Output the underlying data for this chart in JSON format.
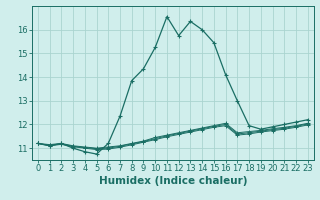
{
  "xlabel": "Humidex (Indice chaleur)",
  "background_color": "#d0eeec",
  "grid_color": "#aad4d0",
  "line_color": "#1a6e64",
  "x_values": [
    0,
    1,
    2,
    3,
    4,
    5,
    6,
    7,
    8,
    9,
    10,
    11,
    12,
    13,
    14,
    15,
    16,
    17,
    18,
    19,
    20,
    21,
    22,
    23
  ],
  "series1": [
    11.2,
    11.1,
    11.2,
    11.0,
    10.85,
    10.75,
    11.2,
    12.35,
    13.85,
    14.35,
    15.25,
    16.55,
    15.75,
    16.35,
    16.0,
    15.45,
    14.1,
    13.0,
    11.95,
    11.8,
    11.9,
    12.0,
    12.1,
    12.2
  ],
  "series2": [
    11.2,
    11.15,
    11.2,
    11.1,
    11.05,
    11.0,
    11.05,
    11.1,
    11.2,
    11.3,
    11.45,
    11.55,
    11.65,
    11.75,
    11.85,
    11.95,
    12.05,
    11.65,
    11.7,
    11.75,
    11.82,
    11.88,
    11.95,
    12.05
  ],
  "series3": [
    11.2,
    11.12,
    11.18,
    11.08,
    11.02,
    10.98,
    11.0,
    11.08,
    11.18,
    11.28,
    11.4,
    11.52,
    11.62,
    11.72,
    11.82,
    11.92,
    12.0,
    11.6,
    11.65,
    11.72,
    11.78,
    11.84,
    11.92,
    12.02
  ],
  "series4": [
    11.2,
    11.1,
    11.16,
    11.06,
    11.0,
    10.94,
    10.96,
    11.04,
    11.14,
    11.25,
    11.36,
    11.48,
    11.58,
    11.68,
    11.78,
    11.88,
    11.95,
    11.55,
    11.6,
    11.68,
    11.74,
    11.8,
    11.88,
    11.98
  ],
  "ylim": [
    10.5,
    17.0
  ],
  "yticks": [
    11,
    12,
    13,
    14,
    15,
    16
  ],
  "xticks": [
    0,
    1,
    2,
    3,
    4,
    5,
    6,
    7,
    8,
    9,
    10,
    11,
    12,
    13,
    14,
    15,
    16,
    17,
    18,
    19,
    20,
    21,
    22,
    23
  ],
  "tick_fontsize": 6,
  "xlabel_fontsize": 7.5
}
